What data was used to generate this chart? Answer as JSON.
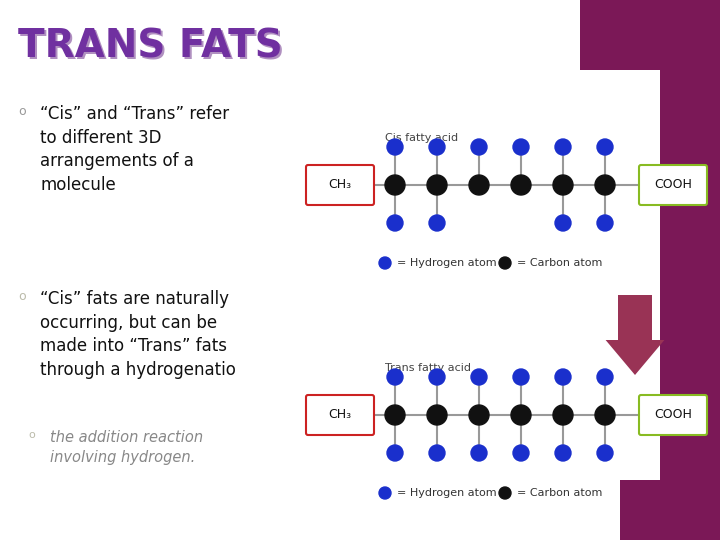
{
  "title": "TRANS FATS",
  "title_color": "#7030A0",
  "title_shadow_color": "#B090C0",
  "bg_color": "#FFFFFF",
  "right_bg_color": "#7B1857",
  "bullet1": "“Cis” and “Trans” refer\nto different 3D\narrangements of a\nmolecule",
  "bullet2": "“Cis” fats are naturally\noccurring, but can be\nmade into “Trans” fats\nthrough a ",
  "bullet2_bold": "hydrogenatio",
  "bullet3_gray": "the addition reaction\ninvolving hydrogen.",
  "cis_label": "Cis fatty acid",
  "trans_label": "Trans fatty acid",
  "ch3_label": "CH₃",
  "cooh_label": "COOH",
  "hydrogen_legend": "= Hydrogen atom",
  "carbon_legend": "= Carbon atom",
  "blue_color": "#1A2FCC",
  "black_color": "#111111",
  "line_color": "#999999",
  "ch3_border": "#CC2222",
  "cooh_border": "#88BB22",
  "arrow_color": "#993355"
}
